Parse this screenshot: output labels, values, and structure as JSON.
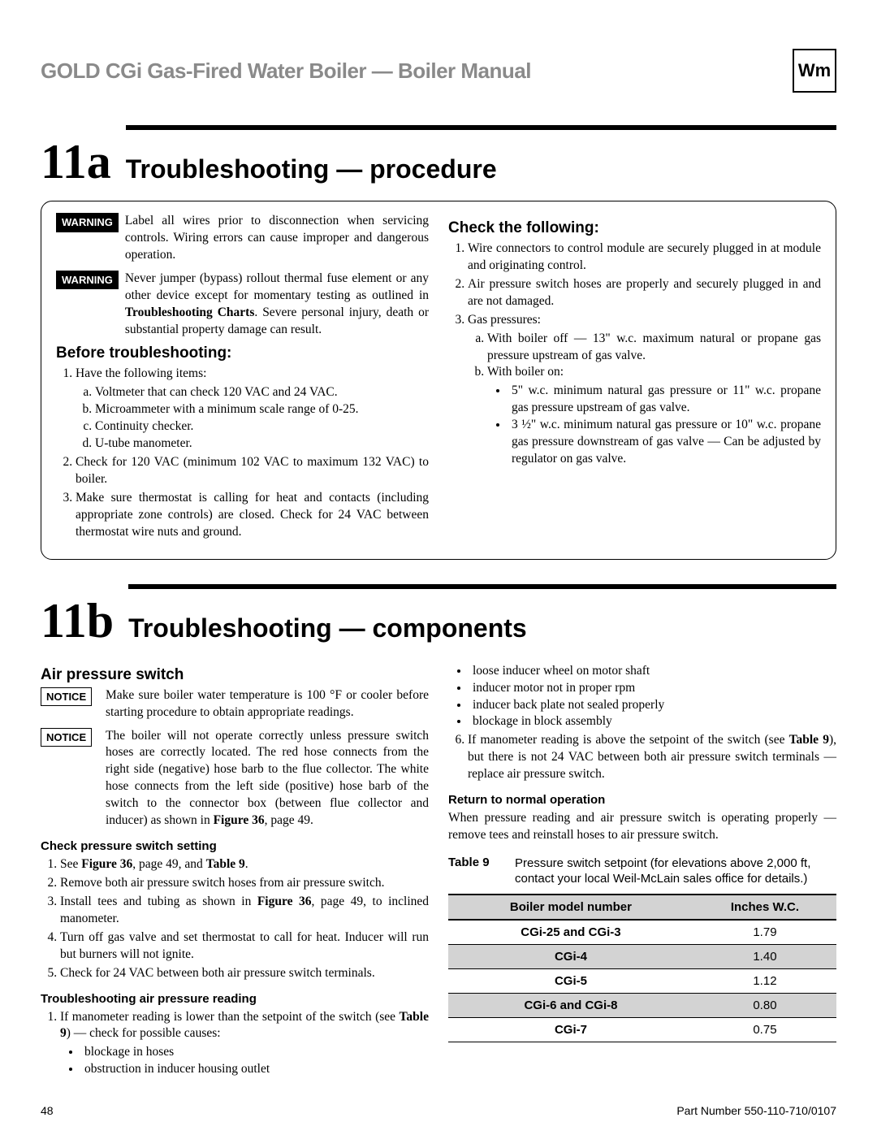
{
  "header": {
    "title": "GOLD CGi Gas-Fired Water Boiler — Boiler Manual",
    "logo_text": "Wm"
  },
  "section_a": {
    "num": "11a",
    "title": "Troubleshooting — procedure",
    "warnings": [
      {
        "badge": "WARNING",
        "text": "Label all wires prior to disconnection when servicing controls. Wiring errors can cause improper and dangerous operation."
      },
      {
        "badge": "WARNING",
        "text": "Never jumper (bypass) rollout thermal fuse element or any other device except for momentary testing as outlined in <b>Troubleshooting Charts</b>. Severe personal injury, death or substantial property damage can result."
      }
    ],
    "before_h": "Before troubleshooting:",
    "before_items": [
      {
        "text": "Have the following items:",
        "sub": [
          "Voltmeter that can check 120 VAC and 24 VAC.",
          "Microammeter with a minimum scale range of 0-25.",
          "Continuity checker.",
          "U-tube manometer."
        ]
      },
      {
        "text": "Check for 120 VAC (minimum 102 VAC to maximum 132 VAC) to boiler."
      },
      {
        "text": "Make sure thermostat is calling for heat and contacts (including appropriate zone controls) are closed. Check for 24 VAC between thermostat wire nuts and ground."
      }
    ],
    "check_h": "Check the following:",
    "check_items": [
      {
        "text": "Wire connectors to control module are securely plugged in at module and originating control."
      },
      {
        "text": "Air pressure switch hoses are properly and securely plugged in and are not damaged."
      },
      {
        "text": "Gas pressures:",
        "sub_alpha": [
          {
            "label": "With boiler off — 13\" w.c. maximum natural or propane gas pressure upstream of gas valve."
          },
          {
            "label": "With boiler on:",
            "bullets": [
              "5\" w.c. minimum natural gas pressure or 11\" w.c. propane gas pressure upstream of gas valve.",
              "3 ½\" w.c. minimum natural gas pressure or 10\" w.c. propane gas pressure downstream of gas valve — Can be adjusted by regulator on gas valve."
            ]
          }
        ]
      }
    ]
  },
  "section_b": {
    "num": "11b",
    "title": "Troubleshooting — components",
    "aps_h": "Air pressure switch",
    "notices": [
      {
        "badge": "NOTICE",
        "text": "Make sure boiler water temperature is 100 °F or cooler before starting procedure to obtain appropriate readings."
      },
      {
        "badge": "NOTICE",
        "text": "The boiler will not operate correctly unless pressure switch hoses are correctly located. The red hose connects from the right side (negative) hose barb to the flue collector. The white hose connects from the left side (positive) hose barb of the switch to the connector box (between flue collector and inducer) as shown in <b>Figure 36</b>, page 49."
      }
    ],
    "cpss_h": "Check pressure switch setting",
    "cpss_items": [
      "See <b>Figure 36</b>, page 49, and <b>Table 9</b>.",
      "Remove both air pressure switch hoses from air pressure switch.",
      "Install tees and tubing as shown in <b>Figure 36</b>, page 49, to inclined manometer.",
      "Turn off gas valve and set thermostat to call for heat. Inducer will run but burners will not ignite.",
      "Check for 24 VAC between both air pressure switch terminals."
    ],
    "tapr_h": "Troubleshooting air pressure reading",
    "tapr_item1": "If manometer reading is lower than the setpoint of the switch (see <b>Table 9</b>) — check for possible causes:",
    "tapr_bullets1": [
      "blockage in hoses",
      "obstruction in inducer housing outlet"
    ],
    "tapr_bullets2": [
      "loose inducer wheel on motor shaft",
      "inducer motor not in proper rpm",
      "inducer back plate not sealed properly",
      "blockage in block assembly"
    ],
    "tapr_item6": "If manometer reading is above the setpoint of the switch (see <b>Table 9</b>), but there is not 24 VAC between both air pressure switch terminals — replace air pressure switch.",
    "rtno_h": "Return to normal operation",
    "rtno_text": "When pressure reading and air pressure switch is operating properly — remove tees and reinstall hoses to air pressure switch.",
    "table9": {
      "label": "Table 9",
      "caption": "Pressure switch setpoint (for elevations above 2,000 ft, contact your local Weil-McLain sales office for details.)",
      "col1": "Boiler model number",
      "col2": "Inches W.C.",
      "rows": [
        {
          "m": "CGi-25 and CGi-3",
          "v": "1.79",
          "shade": false
        },
        {
          "m": "CGi-4",
          "v": "1.40",
          "shade": true
        },
        {
          "m": "CGi-5",
          "v": "1.12",
          "shade": false
        },
        {
          "m": "CGi-6 and CGi-8",
          "v": "0.80",
          "shade": true
        },
        {
          "m": "CGi-7",
          "v": "0.75",
          "shade": false
        }
      ]
    }
  },
  "footer": {
    "page": "48",
    "part": "Part Number 550-110-710/0107"
  }
}
